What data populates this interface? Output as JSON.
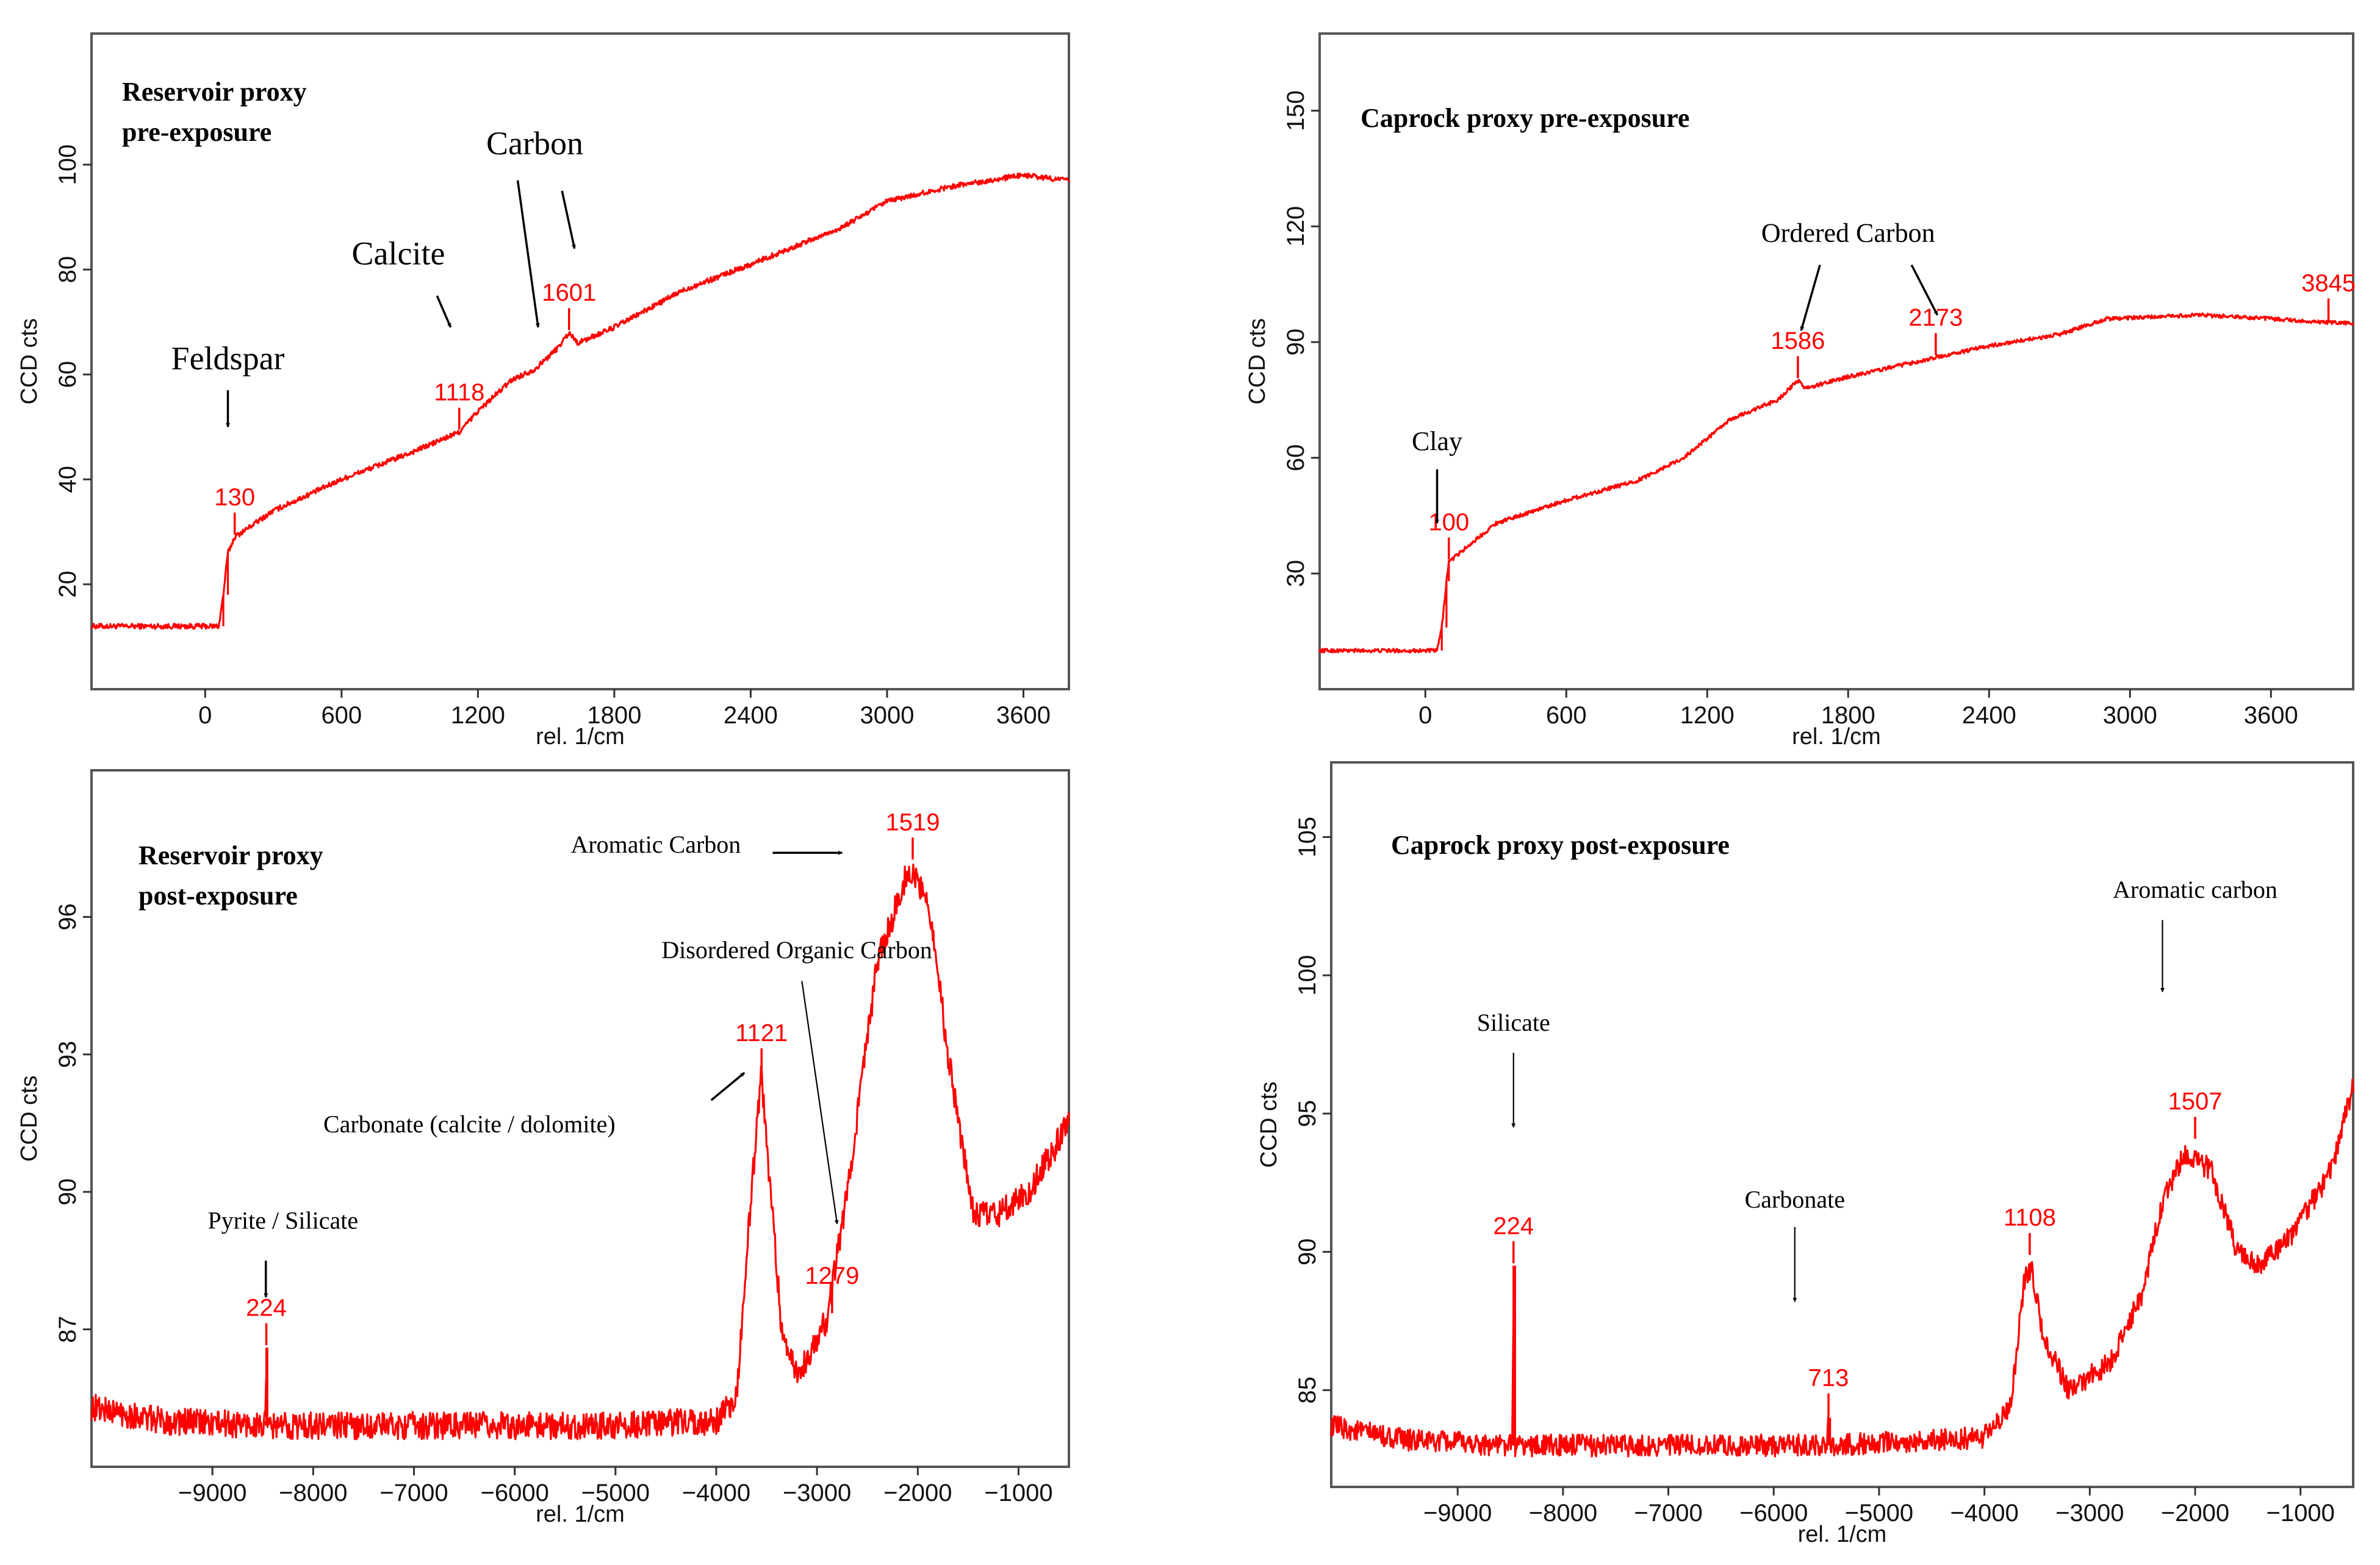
{
  "chart_data": [
    {
      "type": "line",
      "title": "Reservoir proxy\npre-exposure",
      "xlabel": "rel. 1/cm",
      "ylabel": "CCD cts",
      "xlim": [
        -500,
        3800
      ],
      "ylim": [
        0,
        125
      ],
      "xticks": [
        0,
        600,
        1200,
        1800,
        2400,
        3000,
        3600
      ],
      "yticks": [
        20,
        40,
        60,
        80,
        100
      ],
      "noise": 0.5,
      "series": [
        {
          "name": "spectrum",
          "points": [
            [
              -500,
              12
            ],
            [
              60,
              12
            ],
            [
              80,
              18
            ],
            [
              100,
              26
            ],
            [
              130,
              29
            ],
            [
              300,
              34
            ],
            [
              600,
              40
            ],
            [
              900,
              45
            ],
            [
              1118,
              49
            ],
            [
              1200,
              53
            ],
            [
              1350,
              59
            ],
            [
              1450,
              61
            ],
            [
              1550,
              65
            ],
            [
              1601,
              68
            ],
            [
              1640,
              66
            ],
            [
              1800,
              69
            ],
            [
              2100,
              76
            ],
            [
              2400,
              81
            ],
            [
              2800,
              88
            ],
            [
              3000,
              93
            ],
            [
              3300,
              96
            ],
            [
              3600,
              98
            ],
            [
              3800,
              97
            ]
          ]
        }
      ],
      "peak_labels": [
        {
          "x": 130,
          "y": 29,
          "label": "130"
        },
        {
          "x": 1118,
          "y": 49,
          "label": "1118"
        },
        {
          "x": 1601,
          "y": 68,
          "label": "1601"
        }
      ],
      "annotations": [
        {
          "text": "Feldspar",
          "size": 54,
          "x": 100,
          "y": 61,
          "arrow": [
            [
              100,
              57
            ],
            [
              100,
              50
            ]
          ]
        },
        {
          "text": "Calcite",
          "size": 54,
          "x": 850,
          "y": 81,
          "arrow": [
            [
              1020,
              75
            ],
            [
              1080,
              69
            ]
          ]
        },
        {
          "text": "Carbon",
          "size": 54,
          "x": 1450,
          "y": 102,
          "arrows": [
            [
              [
                1375,
                97
              ],
              [
                1465,
                69
              ]
            ],
            [
              [
                1570,
                95
              ],
              [
                1625,
                84
              ]
            ]
          ]
        }
      ]
    },
    {
      "type": "line",
      "title": "Caprock proxy pre-exposure",
      "xlabel": "rel. 1/cm",
      "ylabel": "CCD cts",
      "xlim": [
        -450,
        3950
      ],
      "ylim": [
        0,
        170
      ],
      "xticks": [
        0,
        600,
        1200,
        1800,
        2400,
        3000,
        3600
      ],
      "yticks": [
        30,
        60,
        90,
        120,
        150
      ],
      "noise": 0.5,
      "series": [
        {
          "name": "spectrum",
          "points": [
            [
              -450,
              10
            ],
            [
              50,
              10
            ],
            [
              70,
              16
            ],
            [
              90,
              28
            ],
            [
              100,
              33
            ],
            [
              300,
              43
            ],
            [
              600,
              49
            ],
            [
              900,
              54
            ],
            [
              1100,
              60
            ],
            [
              1300,
              70
            ],
            [
              1500,
              75
            ],
            [
              1586,
              80
            ],
            [
              1620,
              78
            ],
            [
              1800,
              81
            ],
            [
              2173,
              86
            ],
            [
              2400,
              89
            ],
            [
              2700,
              92
            ],
            [
              2900,
              96
            ],
            [
              3300,
              97
            ],
            [
              3600,
              96
            ],
            [
              3845,
              95
            ],
            [
              3950,
              95
            ]
          ]
        }
      ],
      "peak_labels": [
        {
          "x": 100,
          "y": 33,
          "label": "100"
        },
        {
          "x": 1586,
          "y": 80,
          "label": "1586"
        },
        {
          "x": 2173,
          "y": 86,
          "label": "2173"
        },
        {
          "x": 3845,
          "y": 95,
          "label": "3845"
        }
      ],
      "annotations": [
        {
          "text": "Clay",
          "size": 44,
          "x": 50,
          "y": 62,
          "arrow": [
            [
              50,
              57
            ],
            [
              50,
              43
            ]
          ]
        },
        {
          "text": "Ordered Carbon",
          "size": 44,
          "x": 1800,
          "y": 116,
          "arrows": [
            [
              [
                1680,
                110
              ],
              [
                1600,
                93
              ]
            ],
            [
              [
                2070,
                110
              ],
              [
                2180,
                97
              ]
            ]
          ]
        }
      ]
    },
    {
      "type": "line",
      "title": "Reservoir proxy\npost-exposure",
      "xlabel": "rel. 1/cm",
      "ylabel": "CCD cts",
      "xlim": [
        -10200,
        -500
      ],
      "ylim": [
        84.0,
        99.2
      ],
      "xticks": [
        -9000,
        -8000,
        -7000,
        -6000,
        -5000,
        -4000,
        -3000,
        -2000,
        -1000
      ],
      "yticks": [
        87,
        90,
        93,
        96
      ],
      "noise": 0.3,
      "series": [
        {
          "name": "spectrum",
          "points": [
            [
              -10200,
              85.3
            ],
            [
              -9500,
              85.0
            ],
            [
              -8470,
              84.9
            ],
            [
              -8465,
              86.6
            ],
            [
              -8455,
              84.9
            ],
            [
              -5000,
              84.9
            ],
            [
              -4000,
              85.0
            ],
            [
              -3800,
              85.5
            ],
            [
              -3650,
              90.0
            ],
            [
              -3550,
              92.6
            ],
            [
              -3480,
              90.5
            ],
            [
              -3350,
              87.0
            ],
            [
              -3200,
              86.0
            ],
            [
              -2900,
              87.2
            ],
            [
              -2700,
              90.0
            ],
            [
              -2400,
              95.0
            ],
            [
              -2100,
              97.0
            ],
            [
              -1900,
              96.5
            ],
            [
              -1700,
              93.0
            ],
            [
              -1450,
              89.5
            ],
            [
              -1200,
              89.5
            ],
            [
              -900,
              90.0
            ],
            [
              -500,
              91.5
            ]
          ]
        }
      ],
      "peak_labels": [
        {
          "x": -8465,
          "y": 86.6,
          "label": "224"
        },
        {
          "x": -3550,
          "y": 92.6,
          "label": "1121"
        },
        {
          "x": -2850,
          "y": 87.3,
          "label": "1279"
        },
        {
          "x": -2050,
          "y": 97.2,
          "label": "1519"
        }
      ],
      "annotations": [
        {
          "text": "Pyrite / Silicate",
          "size": 40,
          "x": -8300,
          "y": 89.2,
          "arrow": [
            [
              -8470,
              88.5
            ],
            [
              -8470,
              87.7
            ]
          ]
        },
        {
          "text": "Carbonate (calcite / dolomite)",
          "size": 40,
          "x": -6450,
          "y": 91.3,
          "arrow": [
            [
              -4050,
              92.0
            ],
            [
              -3720,
              92.6
            ]
          ]
        },
        {
          "text": "Disordered Organic Carbon",
          "size": 40,
          "x": -3200,
          "y": 95.1,
          "arrow": [
            [
              -3150,
              94.6
            ],
            [
              -2800,
              89.3
            ]
          ]
        },
        {
          "text": "Aromatic Carbon",
          "size": 40,
          "x": -4600,
          "y": 97.4,
          "arrow": [
            [
              -3440,
              97.4
            ],
            [
              -2750,
              97.4
            ]
          ]
        }
      ]
    },
    {
      "type": "line",
      "title": "Caprock proxy post-exposure",
      "xlabel": "rel. 1/cm",
      "ylabel": "CCD cts",
      "xlim": [
        -10200,
        -500
      ],
      "ylim": [
        81.5,
        107.7
      ],
      "xticks": [
        -9000,
        -8000,
        -7000,
        -6000,
        -5000,
        -4000,
        -3000,
        -2000,
        -1000
      ],
      "yticks": [
        85,
        90,
        95,
        100,
        105
      ],
      "noise": 0.4,
      "series": [
        {
          "name": "spectrum",
          "points": [
            [
              -10200,
              83.7
            ],
            [
              -9500,
              83.2
            ],
            [
              -8480,
              83.0
            ],
            [
              -8470,
              89.5
            ],
            [
              -8455,
              83.0
            ],
            [
              -5500,
              83.0
            ],
            [
              -5480,
              84.0
            ],
            [
              -5465,
              83.0
            ],
            [
              -4000,
              83.3
            ],
            [
              -3750,
              84.5
            ],
            [
              -3620,
              89.0
            ],
            [
              -3550,
              89.5
            ],
            [
              -3450,
              87.0
            ],
            [
              -3200,
              85.0
            ],
            [
              -2800,
              86.0
            ],
            [
              -2500,
              88.5
            ],
            [
              -2300,
              92.0
            ],
            [
              -2100,
              93.5
            ],
            [
              -1850,
              93.0
            ],
            [
              -1600,
              90.0
            ],
            [
              -1400,
              89.5
            ],
            [
              -1100,
              90.5
            ],
            [
              -700,
              93.0
            ],
            [
              -500,
              96.0
            ]
          ]
        }
      ],
      "peak_labels": [
        {
          "x": -8470,
          "y": 89.5,
          "label": "224"
        },
        {
          "x": -5480,
          "y": 84.0,
          "label": "713"
        },
        {
          "x": -3570,
          "y": 89.8,
          "label": "1108"
        },
        {
          "x": -2000,
          "y": 94.0,
          "label": "1507"
        }
      ],
      "annotations": [
        {
          "text": "Silicate",
          "size": 40,
          "x": -8470,
          "y": 98.0,
          "arrow": [
            [
              -8470,
              97.2
            ],
            [
              -8470,
              94.5
            ]
          ]
        },
        {
          "text": "Carbonate",
          "size": 40,
          "x": -5800,
          "y": 91.6,
          "arrow": [
            [
              -5800,
              90.9
            ],
            [
              -5800,
              88.2
            ]
          ]
        },
        {
          "text": "Aromatic carbon",
          "size": 40,
          "x": -2000,
          "y": 102.8,
          "arrow": [
            [
              -2310,
              102.0
            ],
            [
              -2310,
              99.4
            ]
          ]
        }
      ]
    }
  ]
}
